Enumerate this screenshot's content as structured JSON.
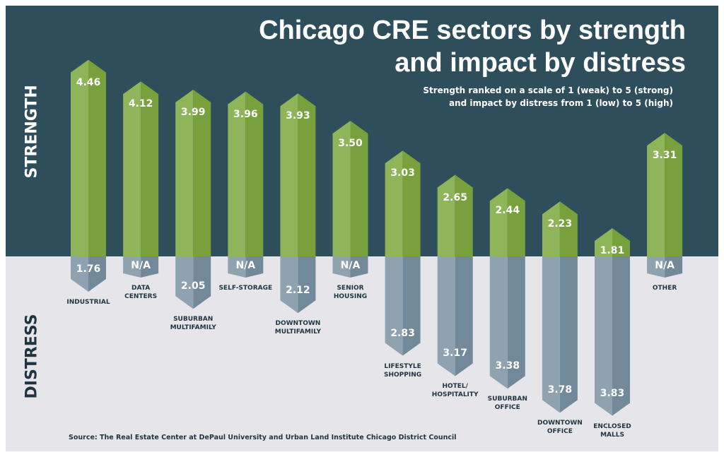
{
  "chart_data": {
    "type": "bar",
    "title": "Chicago CRE sectors by strength and impact by distress",
    "subtitle": [
      "Strength ranked on a scale of 1 (weak) to 5 (strong)",
      "and impact by distress from 1 (low) to 5 (high)"
    ],
    "upper_axis_label": "STRENGTH",
    "lower_axis_label": "DISTRESS",
    "source": "Source: The Real Estate Center at DePaul University and Urban Land Institute Chicago District Council",
    "categories": [
      [
        "INDUSTRIAL"
      ],
      [
        "DATA",
        "CENTERS"
      ],
      [
        "SUBURBAN",
        "MULTIFAMILY"
      ],
      [
        "SELF-STORAGE"
      ],
      [
        "DOWNTOWN",
        "MULTIFAMILY"
      ],
      [
        "SENIOR",
        "HOUSING"
      ],
      [
        "LIFESTYLE",
        "SHOPPING"
      ],
      [
        "HOTEL/",
        "HOSPITALITY"
      ],
      [
        "SUBURBAN",
        "OFFICE"
      ],
      [
        "DOWNTOWN",
        "OFFICE"
      ],
      [
        "ENCLOSED",
        "MALLS"
      ],
      [
        "OTHER"
      ]
    ],
    "series": [
      {
        "name": "STRENGTH",
        "values": [
          4.46,
          4.12,
          3.99,
          3.96,
          3.93,
          3.5,
          3.03,
          2.65,
          2.44,
          2.23,
          1.81,
          3.31
        ],
        "labels": [
          "4.46",
          "4.12",
          "3.99",
          "3.96",
          "3.93",
          "3.50",
          "3.03",
          "2.65",
          "2.44",
          "2.23",
          "1.81",
          "3.31"
        ]
      },
      {
        "name": "DISTRESS",
        "values": [
          1.76,
          null,
          2.05,
          null,
          2.12,
          null,
          2.83,
          3.17,
          3.38,
          3.78,
          3.83,
          null
        ],
        "labels": [
          "1.76",
          "N/A",
          "2.05",
          "N/A",
          "2.12",
          "N/A",
          "2.83",
          "3.17",
          "3.38",
          "3.78",
          "3.83",
          "N/A"
        ]
      }
    ],
    "ylim": [
      1,
      5
    ],
    "colors": {
      "top_bg": "#2f4e5b",
      "bottom_bg": "#e6e6ea",
      "strength_light": "#8fb55a",
      "strength_dark": "#78a03c",
      "distress_light": "#8ea2b0",
      "distress_dark": "#72899a"
    }
  }
}
